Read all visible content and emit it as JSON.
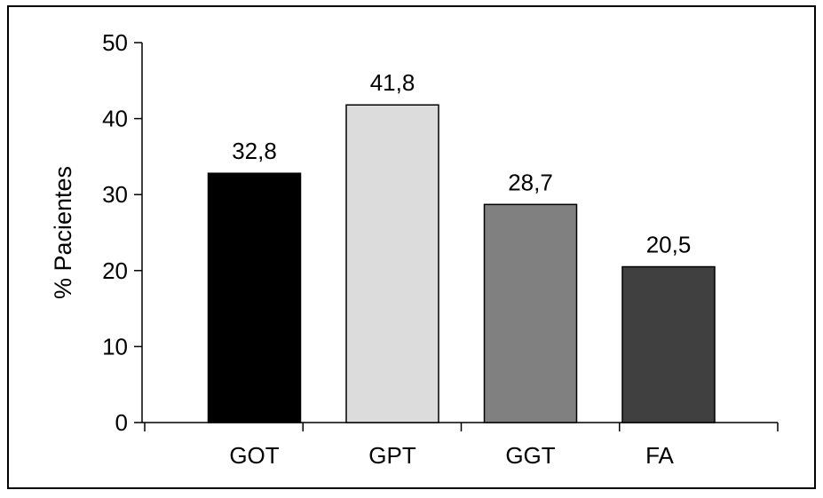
{
  "chart_data": {
    "type": "bar",
    "categories": [
      "GOT",
      "GPT",
      "GGT",
      "FA"
    ],
    "values": [
      32.8,
      41.8,
      28.7,
      20.5
    ],
    "value_labels": [
      "32,8",
      "41,8",
      "28,7",
      "20,5"
    ],
    "bar_colors": [
      "#000000",
      "#dcdcdc",
      "#808080",
      "#404040"
    ],
    "ylabel": "% Pacientes",
    "xlabel": "",
    "ylim": [
      0,
      50
    ],
    "yticks": [
      0,
      10,
      20,
      30,
      40,
      50
    ],
    "ytick_labels": [
      "0",
      "10",
      "20",
      "30",
      "40",
      "50"
    ],
    "grid": false,
    "legend": "none"
  }
}
